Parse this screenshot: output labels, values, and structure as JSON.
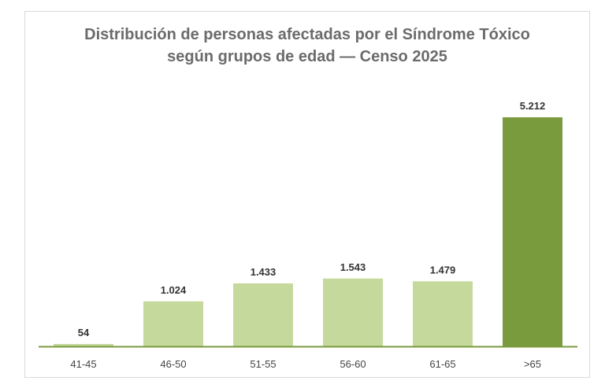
{
  "chart_data": {
    "type": "bar",
    "title_line1": "Distribución de personas afectadas por el Síndrome Tóxico",
    "title_line2": "según grupos de edad — Censo 2025",
    "categories": [
      "41-45",
      "46-50",
      "51-55",
      "56-60",
      "61-65",
      ">65"
    ],
    "values": [
      54,
      1024,
      1433,
      1543,
      1479,
      5212
    ],
    "value_labels": [
      "54",
      "1.024",
      "1.433",
      "1.543",
      "1.479",
      "5.212"
    ],
    "xlabel": "",
    "ylabel": "",
    "ylim": [
      0,
      5212
    ],
    "grid": false,
    "legend": "none",
    "colors": {
      "bar": "#c5d99d",
      "highlight": "#7a9a3e",
      "axis": "#7a9a3e",
      "title": "#6b6b6b"
    },
    "highlight_index": 5
  }
}
